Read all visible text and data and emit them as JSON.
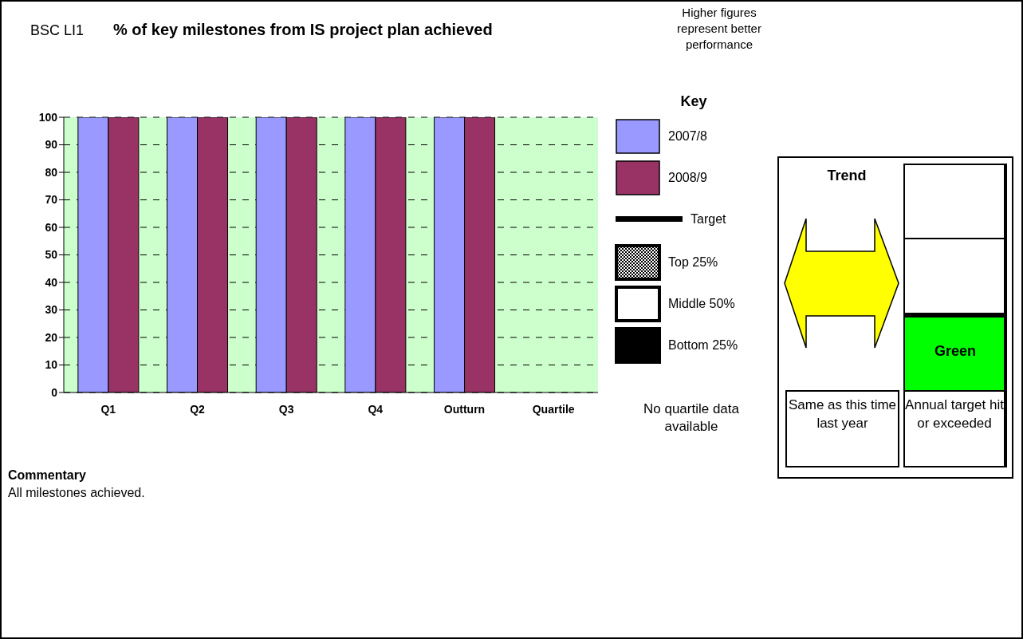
{
  "chart_data": {
    "type": "bar",
    "title": "% of key milestones from IS project plan achieved",
    "categories": [
      "Q1",
      "Q2",
      "Q3",
      "Q4",
      "Outturn",
      "Quartile"
    ],
    "series": [
      {
        "name": "2007/8",
        "color": "#9999ff",
        "values": [
          100,
          100,
          100,
          100,
          100,
          null
        ]
      },
      {
        "name": "2008/9",
        "color": "#993366",
        "values": [
          100,
          100,
          100,
          100,
          100,
          null
        ]
      },
      {
        "name": "Target",
        "type": "line",
        "color": "#000000",
        "values": [
          null,
          null,
          null,
          null,
          null,
          null
        ]
      }
    ],
    "ylim": [
      0,
      100
    ],
    "yticks": [
      0,
      10,
      20,
      30,
      40,
      50,
      60,
      70,
      80,
      90,
      100
    ],
    "grid": "y",
    "legend": "right",
    "legend_title": "Key",
    "annotations": [
      "BSC LI1",
      "Higher figures represent better performance",
      "No quartile data available",
      "Trend",
      "Green",
      "Same as this time last year",
      "Annual target hit or exceeded",
      "Commentary",
      "All milestones achieved.",
      "Top 25%",
      "Middle 50%",
      "Bottom 25%"
    ]
  }
}
